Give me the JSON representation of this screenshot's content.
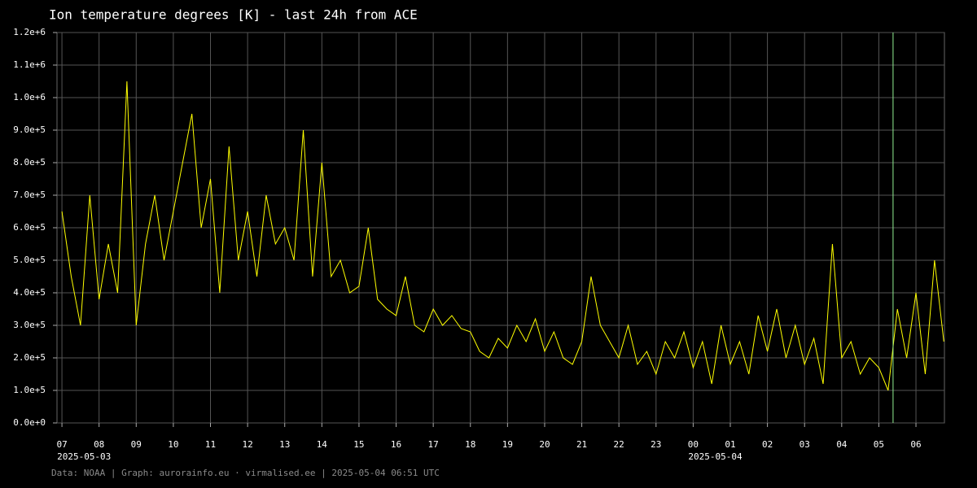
{
  "chart_data": {
    "type": "line",
    "title": "Ion temperature degrees [K] - last 24h from ACE",
    "footer": "Data: NOAA | Graph: aurorainfo.eu · virmalised.ee | 2025-05-04 06:51 UTC",
    "color": "#ffff00",
    "grid": true,
    "xlim": [
      "2025-05-03 06:52",
      "2025-05-04 06:46"
    ],
    "ylim": [
      0,
      1200000
    ],
    "yticks": [
      {
        "value": 0,
        "label": "0.0e+0"
      },
      {
        "value": 100000,
        "label": "1.0e+5"
      },
      {
        "value": 200000,
        "label": "2.0e+5"
      },
      {
        "value": 300000,
        "label": "3.0e+5"
      },
      {
        "value": 400000,
        "label": "4.0e+5"
      },
      {
        "value": 500000,
        "label": "5.0e+5"
      },
      {
        "value": 600000,
        "label": "6.0e+5"
      },
      {
        "value": 700000,
        "label": "7.0e+5"
      },
      {
        "value": 800000,
        "label": "8.0e+5"
      },
      {
        "value": 900000,
        "label": "9.0e+5"
      },
      {
        "value": 1000000,
        "label": "1.0e+6"
      },
      {
        "value": 1100000,
        "label": "1.1e+6"
      },
      {
        "value": 1200000,
        "label": "1.2e+6"
      }
    ],
    "xticks": [
      {
        "value": "2025-05-03 07:00",
        "label": "07"
      },
      {
        "value": "2025-05-03 08:00",
        "label": "08"
      },
      {
        "value": "2025-05-03 09:00",
        "label": "09"
      },
      {
        "value": "2025-05-03 10:00",
        "label": "10"
      },
      {
        "value": "2025-05-03 11:00",
        "label": "11"
      },
      {
        "value": "2025-05-03 12:00",
        "label": "12"
      },
      {
        "value": "2025-05-03 13:00",
        "label": "13"
      },
      {
        "value": "2025-05-03 14:00",
        "label": "14"
      },
      {
        "value": "2025-05-03 15:00",
        "label": "15"
      },
      {
        "value": "2025-05-03 16:00",
        "label": "16"
      },
      {
        "value": "2025-05-03 17:00",
        "label": "17"
      },
      {
        "value": "2025-05-03 18:00",
        "label": "18"
      },
      {
        "value": "2025-05-03 19:00",
        "label": "19"
      },
      {
        "value": "2025-05-03 20:00",
        "label": "20"
      },
      {
        "value": "2025-05-03 21:00",
        "label": "21"
      },
      {
        "value": "2025-05-03 22:00",
        "label": "22"
      },
      {
        "value": "2025-05-03 23:00",
        "label": "23"
      },
      {
        "value": "2025-05-04 00:00",
        "label": "00"
      },
      {
        "value": "2025-05-04 01:00",
        "label": "01"
      },
      {
        "value": "2025-05-04 02:00",
        "label": "02"
      },
      {
        "value": "2025-05-04 03:00",
        "label": "03"
      },
      {
        "value": "2025-05-04 04:00",
        "label": "04"
      },
      {
        "value": "2025-05-04 05:00",
        "label": "05"
      },
      {
        "value": "2025-05-04 06:00",
        "label": "06"
      }
    ],
    "x_date_labels": [
      {
        "value": "2025-05-03 07:00",
        "label": "2025-05-03"
      },
      {
        "value": "2025-05-04 00:00",
        "label": "2025-05-04"
      }
    ],
    "vline": {
      "value": "2025-05-04 05:23",
      "color": "#90ee90"
    },
    "x": [
      "2025-05-03 07:00",
      "2025-05-03 07:15",
      "2025-05-03 07:30",
      "2025-05-03 07:45",
      "2025-05-03 08:00",
      "2025-05-03 08:15",
      "2025-05-03 08:30",
      "2025-05-03 08:45",
      "2025-05-03 09:00",
      "2025-05-03 09:15",
      "2025-05-03 09:30",
      "2025-05-03 09:45",
      "2025-05-03 10:00",
      "2025-05-03 10:15",
      "2025-05-03 10:30",
      "2025-05-03 10:45",
      "2025-05-03 11:00",
      "2025-05-03 11:15",
      "2025-05-03 11:30",
      "2025-05-03 11:45",
      "2025-05-03 12:00",
      "2025-05-03 12:15",
      "2025-05-03 12:30",
      "2025-05-03 12:45",
      "2025-05-03 13:00",
      "2025-05-03 13:15",
      "2025-05-03 13:30",
      "2025-05-03 13:45",
      "2025-05-03 14:00",
      "2025-05-03 14:15",
      "2025-05-03 14:30",
      "2025-05-03 14:45",
      "2025-05-03 15:00",
      "2025-05-03 15:15",
      "2025-05-03 15:30",
      "2025-05-03 15:45",
      "2025-05-03 16:00",
      "2025-05-03 16:15",
      "2025-05-03 16:30",
      "2025-05-03 16:45",
      "2025-05-03 17:00",
      "2025-05-03 17:15",
      "2025-05-03 17:30",
      "2025-05-03 17:45",
      "2025-05-03 18:00",
      "2025-05-03 18:15",
      "2025-05-03 18:30",
      "2025-05-03 18:45",
      "2025-05-03 19:00",
      "2025-05-03 19:15",
      "2025-05-03 19:30",
      "2025-05-03 19:45",
      "2025-05-03 20:00",
      "2025-05-03 20:15",
      "2025-05-03 20:30",
      "2025-05-03 20:45",
      "2025-05-03 21:00",
      "2025-05-03 21:15",
      "2025-05-03 21:30",
      "2025-05-03 21:45",
      "2025-05-03 22:00",
      "2025-05-03 22:15",
      "2025-05-03 22:30",
      "2025-05-03 22:45",
      "2025-05-03 23:00",
      "2025-05-03 23:15",
      "2025-05-03 23:30",
      "2025-05-03 23:45",
      "2025-05-04 00:00",
      "2025-05-04 00:15",
      "2025-05-04 00:30",
      "2025-05-04 00:45",
      "2025-05-04 01:00",
      "2025-05-04 01:15",
      "2025-05-04 01:30",
      "2025-05-04 01:45",
      "2025-05-04 02:00",
      "2025-05-04 02:15",
      "2025-05-04 02:30",
      "2025-05-04 02:45",
      "2025-05-04 03:00",
      "2025-05-04 03:15",
      "2025-05-04 03:30",
      "2025-05-04 03:45",
      "2025-05-04 04:00",
      "2025-05-04 04:15",
      "2025-05-04 04:30",
      "2025-05-04 04:45",
      "2025-05-04 05:00",
      "2025-05-04 05:15",
      "2025-05-04 05:30",
      "2025-05-04 05:45",
      "2025-05-04 06:00",
      "2025-05-04 06:15",
      "2025-05-04 06:30",
      "2025-05-04 06:45"
    ],
    "values": [
      650000,
      450000,
      300000,
      700000,
      380000,
      550000,
      400000,
      1050000,
      300000,
      550000,
      700000,
      500000,
      650000,
      800000,
      950000,
      600000,
      750000,
      400000,
      850000,
      500000,
      650000,
      450000,
      700000,
      550000,
      600000,
      500000,
      900000,
      450000,
      800000,
      450000,
      500000,
      400000,
      420000,
      600000,
      380000,
      350000,
      330000,
      450000,
      300000,
      280000,
      350000,
      300000,
      330000,
      290000,
      280000,
      220000,
      200000,
      260000,
      230000,
      300000,
      250000,
      320000,
      220000,
      280000,
      200000,
      180000,
      250000,
      450000,
      300000,
      250000,
      200000,
      300000,
      180000,
      220000,
      150000,
      250000,
      200000,
      280000,
      170000,
      250000,
      120000,
      300000,
      180000,
      250000,
      150000,
      330000,
      220000,
      350000,
      200000,
      300000,
      180000,
      260000,
      120000,
      550000,
      200000,
      250000,
      150000,
      200000,
      170000,
      100000,
      350000,
      200000,
      400000,
      150000,
      500000,
      250000
    ]
  }
}
